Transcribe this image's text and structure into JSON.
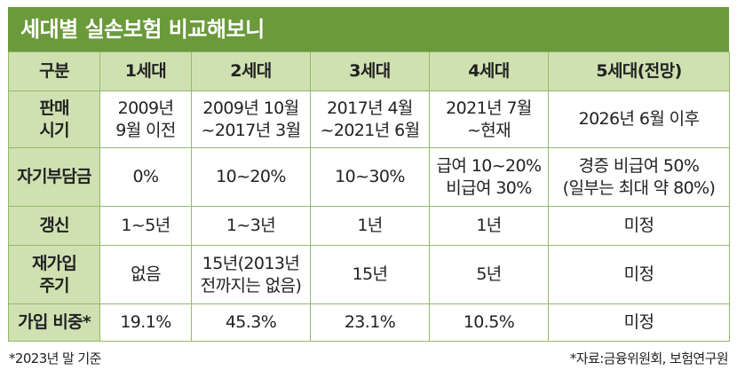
{
  "title": "세대별 실손보험 비교해보니",
  "headers": [
    "구분",
    "1세대",
    "2세대",
    "3세대",
    "4세대",
    "5세대(전망)"
  ],
  "rows": [
    {
      "label": [
        "판매",
        "시기"
      ],
      "cells": [
        [
          "2009년",
          "9월 이전"
        ],
        [
          "2009년 10월",
          "~2017년 3월"
        ],
        [
          "2017년 4월",
          "~2021년 6월"
        ],
        [
          "2021년 7월",
          "~현재"
        ],
        [
          "2026년 6월 이후"
        ]
      ]
    },
    {
      "label": [
        "자기부담금"
      ],
      "cells": [
        [
          "0%"
        ],
        [
          "10~20%"
        ],
        [
          "10~30%"
        ],
        [
          "급여 10~20%",
          "비급여 30%"
        ],
        [
          "경증 비급여 50%",
          "(일부는 최대 약 80%)"
        ]
      ]
    },
    {
      "label": [
        "갱신"
      ],
      "cells": [
        [
          "1~5년"
        ],
        [
          "1~3년"
        ],
        [
          "1년"
        ],
        [
          "1년"
        ],
        [
          "미정"
        ]
      ]
    },
    {
      "label": [
        "재가입",
        "주기"
      ],
      "cells": [
        [
          "없음"
        ],
        [
          "15년(2013년",
          "전까지는 없음)"
        ],
        [
          "15년"
        ],
        [
          "5년"
        ],
        [
          "미정"
        ]
      ]
    },
    {
      "label": [
        "가입 비중*"
      ],
      "cells": [
        [
          "19.1%"
        ],
        [
          "45.3%"
        ],
        [
          "23.1%"
        ],
        [
          "10.5%"
        ],
        [
          "미정"
        ]
      ]
    }
  ],
  "footnote": "*2023년 말 기준",
  "source": "*자료:금융위원회, 보험연구원",
  "colors": {
    "title_bg": "#6a9a3a",
    "header_bg": "#cfe1b1",
    "border": "#93b96c"
  }
}
